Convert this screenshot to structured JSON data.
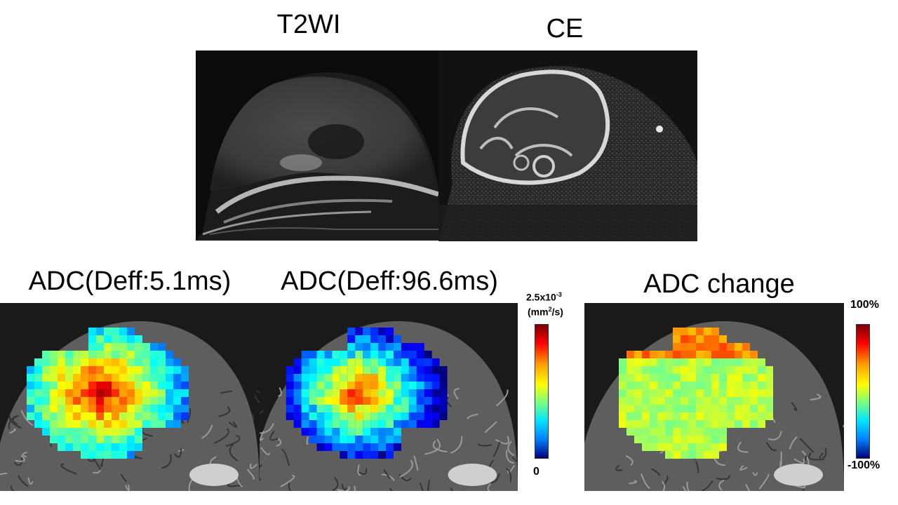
{
  "titles": {
    "t2wi": "T2WI",
    "ce": "CE",
    "adc_short": "ADC(Deff:5.1ms)",
    "adc_long": "ADC(Deff:96.6ms)",
    "adc_change": "ADC change"
  },
  "colorbar_adc": {
    "max_label": "2.5x10",
    "max_exp": "-3",
    "unit_prefix": "(mm",
    "unit_exp": "2",
    "unit_suffix": "/s)",
    "min_label": "0",
    "colormap": "jet"
  },
  "colorbar_change": {
    "max_label": "100%",
    "min_label": "-100%",
    "colormap": "jet"
  },
  "colors": {
    "background": "#ffffff",
    "overlay_hot": "#e02000",
    "overlay_mid": "#e8f030",
    "overlay_cool": "#40c8f0"
  }
}
